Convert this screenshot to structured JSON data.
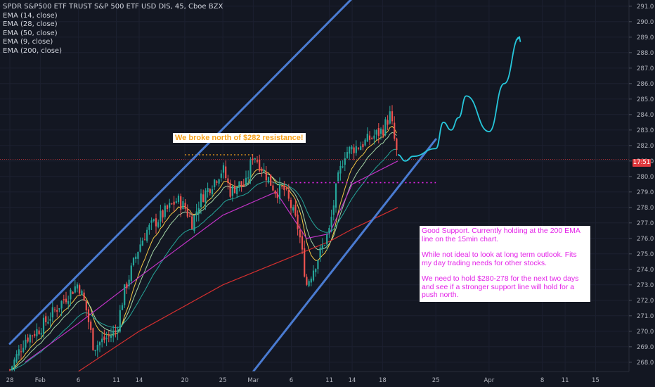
{
  "legend": {
    "title": "SPDR S&P500 ETF TRUST S&P 500 ETF USD DIS, 45, Cboe BZX",
    "indicators": [
      "EMA (14, close)",
      "EMA (28, close)",
      "EMA (50, close)",
      "EMA (9, close)",
      "EMA (200, close)"
    ]
  },
  "annotations": {
    "resistance": "We broke north of $282 resistance!",
    "support_p1": "Good Support. Currently holding at the 200 EMA line on the 15min chart.",
    "support_p2": "While not ideal to look at long term outlook. Fits my day trading needs for other stocks.",
    "support_p3": "We need to hold $280-278 for the next two days and see if a stronger support line will hold for a push north."
  },
  "current_price_label": "17:51",
  "colors": {
    "background": "#131722",
    "channel": "#4a7bd1",
    "projection": "#26c6da",
    "ema200": "#d32f2f",
    "ema50": "#c133c6",
    "resistance_line": "#f7a21b",
    "support_line": "#e424e8",
    "candle_up": "#26a69a",
    "candle_down": "#ef5350"
  },
  "chart_data": {
    "type": "candlestick",
    "title": "SPDR S&P500 ETF TRUST S&P 500 ETF USD DIS, 45, Cboe BZX",
    "x_ticks": [
      "28",
      "Feb",
      "6",
      "11",
      "14",
      "20",
      "25",
      "Mar",
      "6",
      "11",
      "14",
      "18",
      "25",
      "Apr",
      "8",
      "11",
      "15"
    ],
    "y_ticks": [
      268.0,
      269.0,
      270.0,
      271.0,
      272.0,
      273.0,
      274.0,
      275.0,
      276.0,
      277.0,
      278.0,
      279.0,
      280.0,
      281.0,
      282.0,
      283.0,
      284.0,
      285.0,
      286.0,
      287.0,
      288.0,
      289.0,
      290.0,
      291.0
    ],
    "y_range": [
      267.4,
      291.4
    ],
    "close_path": [
      {
        "x": "Jan 28",
        "y": 267.5
      },
      {
        "x": "Jan 30",
        "y": 269.5
      },
      {
        "x": "Feb 1",
        "y": 270.2
      },
      {
        "x": "Feb 4",
        "y": 272.0
      },
      {
        "x": "Feb 6",
        "y": 273.1
      },
      {
        "x": "Feb 7",
        "y": 271.5
      },
      {
        "x": "Feb 8",
        "y": 269.0
      },
      {
        "x": "Feb 11",
        "y": 270.0
      },
      {
        "x": "Feb 12",
        "y": 272.5
      },
      {
        "x": "Feb 14",
        "y": 275.5
      },
      {
        "x": "Feb 15",
        "y": 276.5
      },
      {
        "x": "Feb 19",
        "y": 278.5
      },
      {
        "x": "Feb 20",
        "y": 278.0
      },
      {
        "x": "Feb 21",
        "y": 277.0
      },
      {
        "x": "Feb 22",
        "y": 278.5
      },
      {
        "x": "Feb 25",
        "y": 280.5
      },
      {
        "x": "Feb 26",
        "y": 279.0
      },
      {
        "x": "Feb 27",
        "y": 279.5
      },
      {
        "x": "Feb 28",
        "y": 279.4
      },
      {
        "x": "Mar 1",
        "y": 281.5
      },
      {
        "x": "Mar 4",
        "y": 279.0
      },
      {
        "x": "Mar 5",
        "y": 279.2
      },
      {
        "x": "Mar 6",
        "y": 278.0
      },
      {
        "x": "Mar 7",
        "y": 276.5
      },
      {
        "x": "Mar 8",
        "y": 273.0
      },
      {
        "x": "Mar 11",
        "y": 276.5
      },
      {
        "x": "Mar 12",
        "y": 279.5
      },
      {
        "x": "Mar 13",
        "y": 281.5
      },
      {
        "x": "Mar 14",
        "y": 281.8
      },
      {
        "x": "Mar 15",
        "y": 282.0
      },
      {
        "x": "Mar 18",
        "y": 283.0
      },
      {
        "x": "Mar 19",
        "y": 284.0
      },
      {
        "x": "Mar 20",
        "y": 281.1
      }
    ],
    "series": [
      {
        "name": "EMA (200, close)",
        "values": [
          {
            "x": "Feb 6",
            "y": 267.4
          },
          {
            "x": "Feb 14",
            "y": 270.0
          },
          {
            "x": "Feb 25",
            "y": 273.0
          },
          {
            "x": "Mar 6",
            "y": 274.8
          },
          {
            "x": "Mar 11",
            "y": 275.8
          },
          {
            "x": "Mar 14",
            "y": 276.6
          },
          {
            "x": "Mar 20",
            "y": 278.0
          }
        ]
      },
      {
        "name": "EMA (50, close)",
        "values": [
          {
            "x": "Jan 30",
            "y": 268.0
          },
          {
            "x": "Feb 6",
            "y": 270.5
          },
          {
            "x": "Feb 14",
            "y": 273.5
          },
          {
            "x": "Feb 25",
            "y": 277.5
          },
          {
            "x": "Mar 4",
            "y": 279.0
          },
          {
            "x": "Mar 8",
            "y": 276.0
          },
          {
            "x": "Mar 11",
            "y": 276.3
          },
          {
            "x": "Mar 14",
            "y": 279.5
          },
          {
            "x": "Mar 20",
            "y": 281.0
          }
        ]
      }
    ],
    "annotations": [
      {
        "type": "resistance",
        "y": 281.4,
        "from": "Feb 20",
        "to": "Mar 1"
      },
      {
        "type": "support",
        "y": 279.6,
        "from": "Mar 6",
        "to": "Mar 25"
      },
      {
        "type": "channel_upper",
        "from": {
          "x": "Jan 28",
          "y": 269.2
        },
        "to": {
          "x": "Mar 14",
          "y": 291.5
        }
      },
      {
        "type": "channel_lower",
        "from": {
          "x": "Mar 1",
          "y": 267.4
        },
        "to": {
          "x": "Mar 25",
          "y": 282.4
        }
      }
    ],
    "projection": [
      {
        "x": "Mar 20",
        "y": 281.4
      },
      {
        "x": "Mar 21",
        "y": 281.0
      },
      {
        "x": "Mar 22",
        "y": 281.3
      },
      {
        "x": "Mar 25",
        "y": 281.8
      },
      {
        "x": "Mar 26",
        "y": 283.5
      },
      {
        "x": "Mar 27",
        "y": 283.0
      },
      {
        "x": "Mar 28",
        "y": 283.8
      },
      {
        "x": "Mar 29",
        "y": 285.2
      },
      {
        "x": "Apr 1",
        "y": 282.9
      },
      {
        "x": "Apr 3",
        "y": 286.0
      },
      {
        "x": "Apr 5",
        "y": 289.0
      }
    ]
  }
}
